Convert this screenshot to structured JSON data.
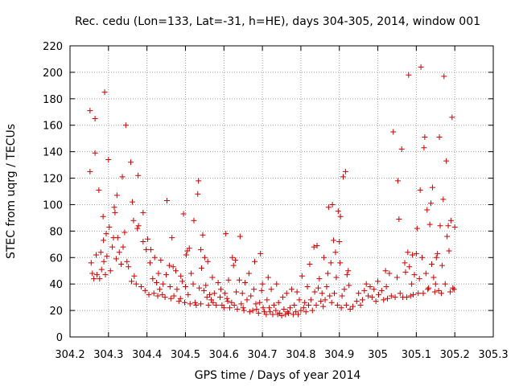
{
  "chart_data": {
    "type": "scatter",
    "title": "Rec. cedu (Lon=133, Lat=-31, h=HE), days 304-305, 2014, window 001",
    "xlabel": "GPS time / Days of year 2014",
    "ylabel": "STEC from uqrg / TECUs",
    "xlim": [
      304.2,
      305.3
    ],
    "ylim": [
      0,
      220
    ],
    "xticks": [
      "304.2",
      "304.3",
      "304.4",
      "304.5",
      "304.6",
      "304.7",
      "304.8",
      "304.9",
      "305",
      "305.1",
      "305.2",
      "305.3"
    ],
    "yticks": [
      "0",
      "20",
      "40",
      "60",
      "80",
      "100",
      "120",
      "140",
      "160",
      "180",
      "200",
      "220"
    ],
    "marker": "+",
    "color": "#cc0000",
    "series": [
      {
        "name": "STEC",
        "points": [
          [
            304.252,
            171
          ],
          [
            304.252,
            125
          ],
          [
            304.255,
            56
          ],
          [
            304.258,
            48
          ],
          [
            304.262,
            44
          ],
          [
            304.265,
            165
          ],
          [
            304.265,
            139
          ],
          [
            304.268,
            62
          ],
          [
            304.27,
            47
          ],
          [
            304.275,
            111
          ],
          [
            304.277,
            44
          ],
          [
            304.28,
            64
          ],
          [
            304.282,
            51
          ],
          [
            304.286,
            91
          ],
          [
            304.287,
            73
          ],
          [
            304.288,
            57
          ],
          [
            304.29,
            185
          ],
          [
            304.292,
            47
          ],
          [
            304.294,
            78
          ],
          [
            304.296,
            61
          ],
          [
            304.3,
            134
          ],
          [
            304.302,
            83
          ],
          [
            304.305,
            50
          ],
          [
            304.31,
            68
          ],
          [
            304.313,
            75
          ],
          [
            304.315,
            98
          ],
          [
            304.317,
            94
          ],
          [
            304.32,
            59
          ],
          [
            304.322,
            107
          ],
          [
            304.324,
            75
          ],
          [
            304.328,
            64
          ],
          [
            304.333,
            55
          ],
          [
            304.336,
            121
          ],
          [
            304.338,
            68
          ],
          [
            304.342,
            79
          ],
          [
            304.345,
            160
          ],
          [
            304.348,
            57
          ],
          [
            304.352,
            53
          ],
          [
            304.358,
            132
          ],
          [
            304.36,
            42
          ],
          [
            304.362,
            102
          ],
          [
            304.365,
            88
          ],
          [
            304.367,
            46
          ],
          [
            304.372,
            40
          ],
          [
            304.375,
            82
          ],
          [
            304.377,
            122
          ],
          [
            304.378,
            84
          ],
          [
            304.385,
            38
          ],
          [
            304.39,
            72
          ],
          [
            304.39,
            94
          ],
          [
            304.395,
            35
          ],
          [
            304.398,
            66
          ],
          [
            304.402,
            74
          ],
          [
            304.405,
            32
          ],
          [
            304.408,
            56
          ],
          [
            304.41,
            66
          ],
          [
            304.415,
            44
          ],
          [
            304.418,
            33
          ],
          [
            304.42,
            60
          ],
          [
            304.425,
            41
          ],
          [
            304.428,
            31
          ],
          [
            304.43,
            48
          ],
          [
            304.433,
            36
          ],
          [
            304.436,
            58
          ],
          [
            304.44,
            32
          ],
          [
            304.442,
            40
          ],
          [
            304.447,
            30
          ],
          [
            304.45,
            47
          ],
          [
            304.452,
            103
          ],
          [
            304.458,
            54
          ],
          [
            304.46,
            38
          ],
          [
            304.462,
            29
          ],
          [
            304.465,
            75
          ],
          [
            304.468,
            53
          ],
          [
            304.47,
            31
          ],
          [
            304.475,
            50
          ],
          [
            304.478,
            36
          ],
          [
            304.483,
            27
          ],
          [
            304.487,
            29
          ],
          [
            304.488,
            46
          ],
          [
            304.492,
            42
          ],
          [
            304.495,
            93
          ],
          [
            304.498,
            26
          ],
          [
            304.5,
            38
          ],
          [
            304.502,
            62
          ],
          [
            304.505,
            65
          ],
          [
            304.507,
            32
          ],
          [
            304.51,
            67
          ],
          [
            304.512,
            25
          ],
          [
            304.515,
            48
          ],
          [
            304.52,
            40
          ],
          [
            304.522,
            88
          ],
          [
            304.525,
            26
          ],
          [
            304.528,
            24
          ],
          [
            304.532,
            108
          ],
          [
            304.534,
            118
          ],
          [
            304.536,
            37
          ],
          [
            304.54,
            66
          ],
          [
            304.54,
            25
          ],
          [
            304.542,
            52
          ],
          [
            304.545,
            77
          ],
          [
            304.548,
            35
          ],
          [
            304.55,
            60
          ],
          [
            304.553,
            39
          ],
          [
            304.556,
            30
          ],
          [
            304.558,
            57
          ],
          [
            304.56,
            24
          ],
          [
            304.563,
            32
          ],
          [
            304.567,
            28
          ],
          [
            304.57,
            45
          ],
          [
            304.572,
            26
          ],
          [
            304.575,
            33
          ],
          [
            304.58,
            24
          ],
          [
            304.585,
            41
          ],
          [
            304.59,
            30
          ],
          [
            304.592,
            36
          ],
          [
            304.595,
            24
          ],
          [
            304.6,
            22
          ],
          [
            304.603,
            33
          ],
          [
            304.605,
            78
          ],
          [
            304.608,
            29
          ],
          [
            304.61,
            27
          ],
          [
            304.612,
            43
          ],
          [
            304.615,
            22
          ],
          [
            304.62,
            26
          ],
          [
            304.622,
            60
          ],
          [
            304.625,
            54
          ],
          [
            304.627,
            24
          ],
          [
            304.63,
            58
          ],
          [
            304.632,
            34
          ],
          [
            304.635,
            21
          ],
          [
            304.64,
            43
          ],
          [
            304.642,
            76
          ],
          [
            304.645,
            25
          ],
          [
            304.648,
            33
          ],
          [
            304.65,
            22
          ],
          [
            304.652,
            20
          ],
          [
            304.655,
            41
          ],
          [
            304.66,
            28
          ],
          [
            304.665,
            48
          ],
          [
            304.667,
            19
          ],
          [
            304.67,
            31
          ],
          [
            304.675,
            20
          ],
          [
            304.678,
            36
          ],
          [
            304.68,
            57
          ],
          [
            304.683,
            25
          ],
          [
            304.685,
            21
          ],
          [
            304.69,
            18
          ],
          [
            304.693,
            26
          ],
          [
            304.695,
            63
          ],
          [
            304.698,
            35
          ],
          [
            304.7,
            40
          ],
          [
            304.702,
            22
          ],
          [
            304.705,
            19
          ],
          [
            304.71,
            17
          ],
          [
            304.712,
            28
          ],
          [
            304.715,
            45
          ],
          [
            304.718,
            22
          ],
          [
            304.72,
            19
          ],
          [
            304.723,
            36
          ],
          [
            304.727,
            17
          ],
          [
            304.73,
            24
          ],
          [
            304.735,
            20
          ],
          [
            304.737,
            40
          ],
          [
            304.74,
            17
          ],
          [
            304.742,
            26
          ],
          [
            304.745,
            18
          ],
          [
            304.75,
            16
          ],
          [
            304.753,
            30
          ],
          [
            304.756,
            21
          ],
          [
            304.76,
            17
          ],
          [
            304.763,
            33
          ],
          [
            304.765,
            19
          ],
          [
            304.768,
            18
          ],
          [
            304.772,
            22
          ],
          [
            304.776,
            36
          ],
          [
            304.78,
            17
          ],
          [
            304.783,
            24
          ],
          [
            304.787,
            19
          ],
          [
            304.79,
            34
          ],
          [
            304.793,
            17
          ],
          [
            304.796,
            28
          ],
          [
            304.8,
            20
          ],
          [
            304.803,
            46
          ],
          [
            304.807,
            22
          ],
          [
            304.81,
            26
          ],
          [
            304.813,
            19
          ],
          [
            304.817,
            38
          ],
          [
            304.82,
            24
          ],
          [
            304.823,
            55
          ],
          [
            304.826,
            28
          ],
          [
            304.83,
            20
          ],
          [
            304.834,
            68
          ],
          [
            304.836,
            34
          ],
          [
            304.84,
            24
          ],
          [
            304.842,
            69
          ],
          [
            304.845,
            37
          ],
          [
            304.848,
            44
          ],
          [
            304.852,
            27
          ],
          [
            304.855,
            33
          ],
          [
            304.858,
            23
          ],
          [
            304.86,
            60
          ],
          [
            304.863,
            28
          ],
          [
            304.867,
            38
          ],
          [
            304.87,
            48
          ],
          [
            304.872,
            98
          ],
          [
            304.875,
            31
          ],
          [
            304.878,
            56
          ],
          [
            304.88,
            26
          ],
          [
            304.882,
            100
          ],
          [
            304.885,
            73
          ],
          [
            304.887,
            33
          ],
          [
            304.89,
            64
          ],
          [
            304.892,
            45
          ],
          [
            304.895,
            24
          ],
          [
            304.897,
            95
          ],
          [
            304.9,
            72
          ],
          [
            304.902,
            56
          ],
          [
            304.903,
            91
          ],
          [
            304.905,
            22
          ],
          [
            304.907,
            31
          ],
          [
            304.91,
            121
          ],
          [
            304.913,
            36
          ],
          [
            304.916,
            125
          ],
          [
            304.918,
            24
          ],
          [
            304.92,
            47
          ],
          [
            304.923,
            50
          ],
          [
            304.925,
            39
          ],
          [
            304.928,
            21
          ],
          [
            304.935,
            23
          ],
          [
            304.945,
            27
          ],
          [
            304.95,
            33
          ],
          [
            304.955,
            24
          ],
          [
            304.96,
            28
          ],
          [
            304.965,
            35
          ],
          [
            304.97,
            40
          ],
          [
            304.975,
            31
          ],
          [
            304.98,
            38
          ],
          [
            304.985,
            30
          ],
          [
            304.99,
            36
          ],
          [
            304.995,
            27
          ],
          [
            305,
            42
          ],
          [
            305.002,
            32
          ],
          [
            305.01,
            35
          ],
          [
            305.015,
            28
          ],
          [
            305.02,
            50
          ],
          [
            305.022,
            38
          ],
          [
            305.025,
            29
          ],
          [
            305.03,
            48
          ],
          [
            305.035,
            31
          ],
          [
            305.04,
            155
          ],
          [
            305.045,
            30
          ],
          [
            305.05,
            45
          ],
          [
            305.052,
            118
          ],
          [
            305.055,
            89
          ],
          [
            305.058,
            33
          ],
          [
            305.062,
            142
          ],
          [
            305.065,
            30
          ],
          [
            305.07,
            56
          ],
          [
            305.072,
            49
          ],
          [
            305.075,
            30
          ],
          [
            305.078,
            64
          ],
          [
            305.08,
            198
          ],
          [
            305.082,
            53
          ],
          [
            305.085,
            31
          ],
          [
            305.088,
            40
          ],
          [
            305.09,
            62
          ],
          [
            305.092,
            32
          ],
          [
            305.095,
            47
          ],
          [
            305.1,
            63
          ],
          [
            305.102,
            82
          ],
          [
            305.105,
            33
          ],
          [
            305.108,
            44
          ],
          [
            305.11,
            111
          ],
          [
            305.112,
            204
          ],
          [
            305.115,
            60
          ],
          [
            305.118,
            33
          ],
          [
            305.12,
            143
          ],
          [
            305.122,
            151
          ],
          [
            305.125,
            48
          ],
          [
            305.128,
            96
          ],
          [
            305.13,
            36
          ],
          [
            305.132,
            37
          ],
          [
            305.135,
            85
          ],
          [
            305.138,
            101
          ],
          [
            305.14,
            55
          ],
          [
            305.142,
            113
          ],
          [
            305.145,
            45
          ],
          [
            305.148,
            34
          ],
          [
            305.15,
            40
          ],
          [
            305.152,
            60
          ],
          [
            305.155,
            63
          ],
          [
            305.158,
            35
          ],
          [
            305.16,
            151
          ],
          [
            305.162,
            84
          ],
          [
            305.165,
            33
          ],
          [
            305.167,
            54
          ],
          [
            305.17,
            104
          ],
          [
            305.172,
            197
          ],
          [
            305.175,
            40
          ],
          [
            305.178,
            133
          ],
          [
            305.18,
            76
          ],
          [
            305.183,
            84
          ],
          [
            305.185,
            65
          ],
          [
            305.188,
            34
          ],
          [
            305.19,
            88
          ],
          [
            305.193,
            166
          ],
          [
            305.195,
            37
          ],
          [
            305.198,
            36
          ],
          [
            305.2,
            83
          ]
        ]
      }
    ]
  }
}
